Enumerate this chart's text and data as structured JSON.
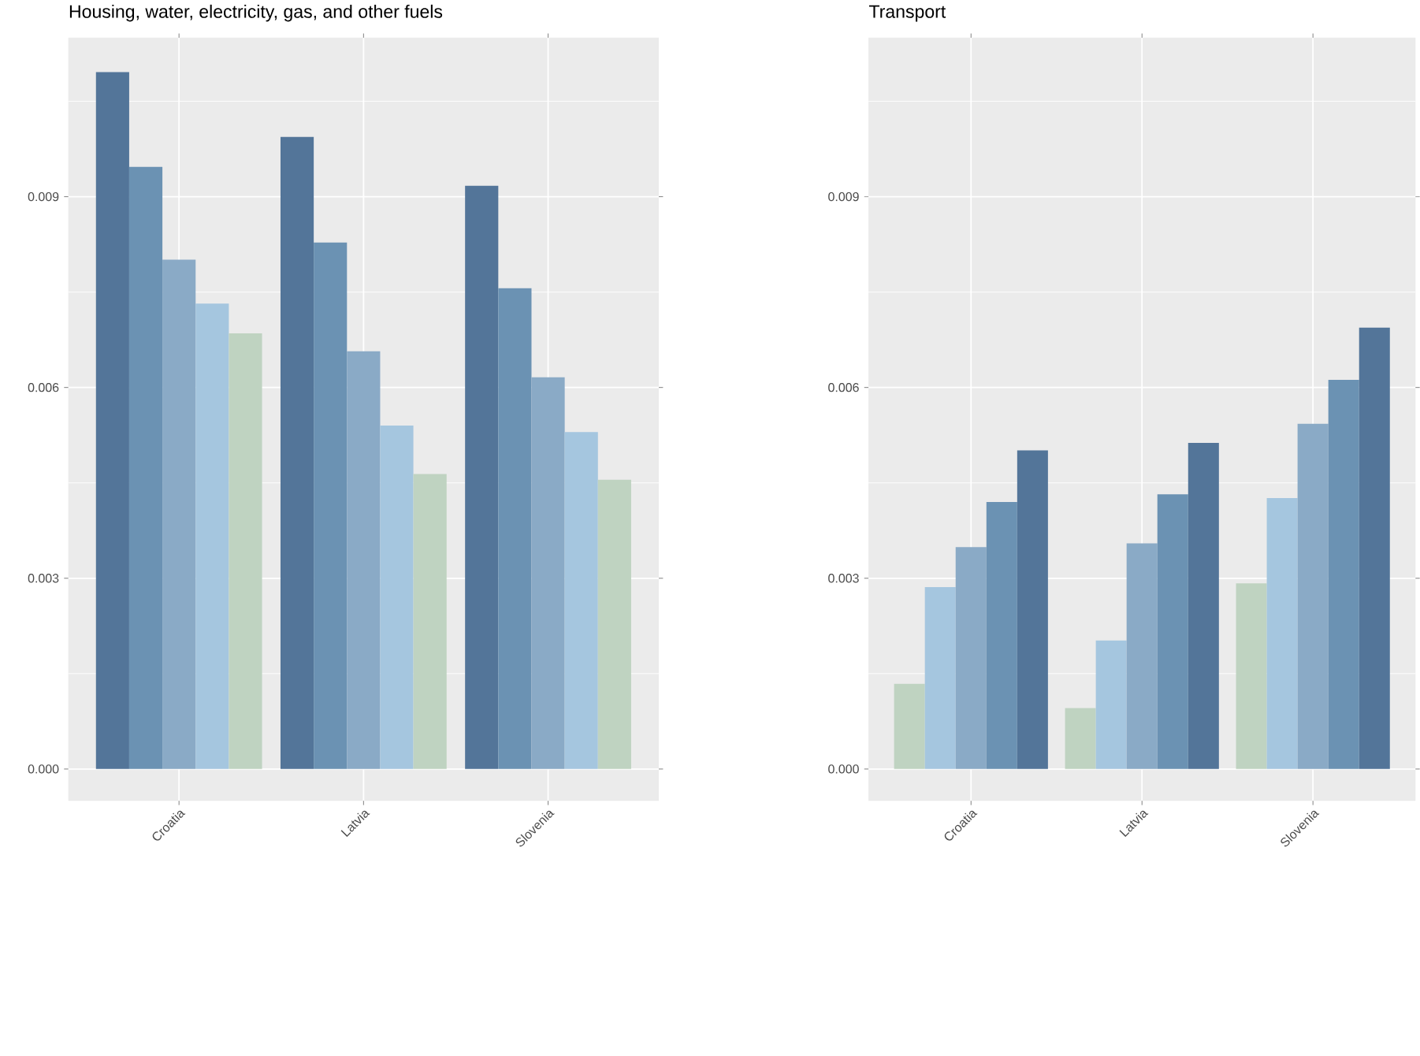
{
  "chart_data": [
    {
      "type": "bar",
      "title": "Housing, water, electricity, gas, and other fuels",
      "categories": [
        "Croatia",
        "Latvia",
        "Slovenia"
      ],
      "series": [
        {
          "color": "#537599",
          "values": [
            0.01096,
            0.00994,
            0.00917
          ]
        },
        {
          "color": "#6b92b3",
          "values": [
            0.00947,
            0.00828,
            0.00756
          ]
        },
        {
          "color": "#8aaac6",
          "values": [
            0.00801,
            0.00657,
            0.00616
          ]
        },
        {
          "color": "#a5c6df",
          "values": [
            0.00732,
            0.0054,
            0.0053
          ]
        },
        {
          "color": "#bfd3c1",
          "values": [
            0.00685,
            0.00464,
            0.00455
          ]
        }
      ],
      "ylim": [
        -0.0005,
        0.0115
      ],
      "yticks": [
        {
          "value": 0,
          "label": "0.000"
        },
        {
          "value": 0.0015,
          "label": null
        },
        {
          "value": 0.003,
          "label": "0.003"
        },
        {
          "value": 0.0045,
          "label": null
        },
        {
          "value": 0.006,
          "label": "0.006"
        },
        {
          "value": 0.0075,
          "label": null
        },
        {
          "value": 0.009,
          "label": "0.009"
        },
        {
          "value": 0.0105,
          "label": null
        }
      ],
      "grid": true
    },
    {
      "type": "bar",
      "title": "Transport",
      "categories": [
        "Croatia",
        "Latvia",
        "Slovenia"
      ],
      "series": [
        {
          "color": "#bfd3c1",
          "values": [
            0.00134,
            0.00096,
            0.00292
          ]
        },
        {
          "color": "#a5c6df",
          "values": [
            0.00286,
            0.00202,
            0.00426
          ]
        },
        {
          "color": "#8aaac6",
          "values": [
            0.00349,
            0.00355,
            0.00543
          ]
        },
        {
          "color": "#6b92b3",
          "values": [
            0.0042,
            0.00432,
            0.00612
          ]
        },
        {
          "color": "#537599",
          "values": [
            0.00501,
            0.00513,
            0.00694
          ]
        }
      ],
      "ylim": [
        -0.0005,
        0.0115
      ],
      "yticks": [
        {
          "value": 0,
          "label": "0.000"
        },
        {
          "value": 0.0015,
          "label": null
        },
        {
          "value": 0.003,
          "label": "0.003"
        },
        {
          "value": 0.0045,
          "label": null
        },
        {
          "value": 0.006,
          "label": "0.006"
        },
        {
          "value": 0.0075,
          "label": null
        },
        {
          "value": 0.009,
          "label": "0.009"
        },
        {
          "value": 0.0105,
          "label": null
        }
      ],
      "grid": true
    }
  ]
}
